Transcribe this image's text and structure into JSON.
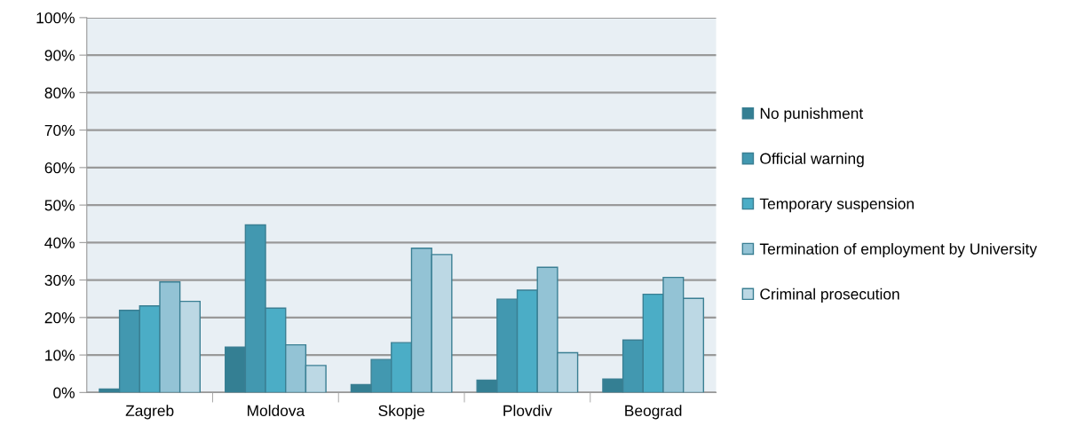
{
  "chart_data": {
    "type": "bar",
    "categories": [
      "Zagreb",
      "Moldova",
      "Skopje",
      "Plovdiv",
      "Beograd"
    ],
    "series": [
      {
        "name": "No punishment",
        "color": "#347f93",
        "values": [
          0.9,
          12.1,
          2.1,
          3.3,
          3.6
        ]
      },
      {
        "name": "Official warning",
        "color": "#4298b0",
        "values": [
          21.9,
          44.7,
          8.8,
          24.9,
          14.0
        ]
      },
      {
        "name": "Temporary suspension",
        "color": "#4badc6",
        "values": [
          23.1,
          22.5,
          13.3,
          27.3,
          26.2
        ]
      },
      {
        "name": "Termination of employment by University",
        "color": "#93c3d5",
        "values": [
          29.5,
          12.7,
          38.5,
          33.4,
          30.7
        ]
      },
      {
        "name": "Criminal prosecution",
        "color": "#bcd8e4",
        "values": [
          24.3,
          7.2,
          36.8,
          10.6,
          25.1
        ]
      }
    ],
    "ylim": [
      0,
      100
    ],
    "yticks": [
      {
        "value": 0,
        "label": "0%"
      },
      {
        "value": 10,
        "label": "10%"
      },
      {
        "value": 20,
        "label": "20%"
      },
      {
        "value": 30,
        "label": "30%"
      },
      {
        "value": 40,
        "label": "40%"
      },
      {
        "value": 50,
        "label": "50%"
      },
      {
        "value": 60,
        "label": "60%"
      },
      {
        "value": 70,
        "label": "70%"
      },
      {
        "value": 80,
        "label": "80%"
      },
      {
        "value": 90,
        "label": "90%"
      },
      {
        "value": 100,
        "label": "100%"
      }
    ],
    "grid": "y",
    "legend": "right"
  }
}
